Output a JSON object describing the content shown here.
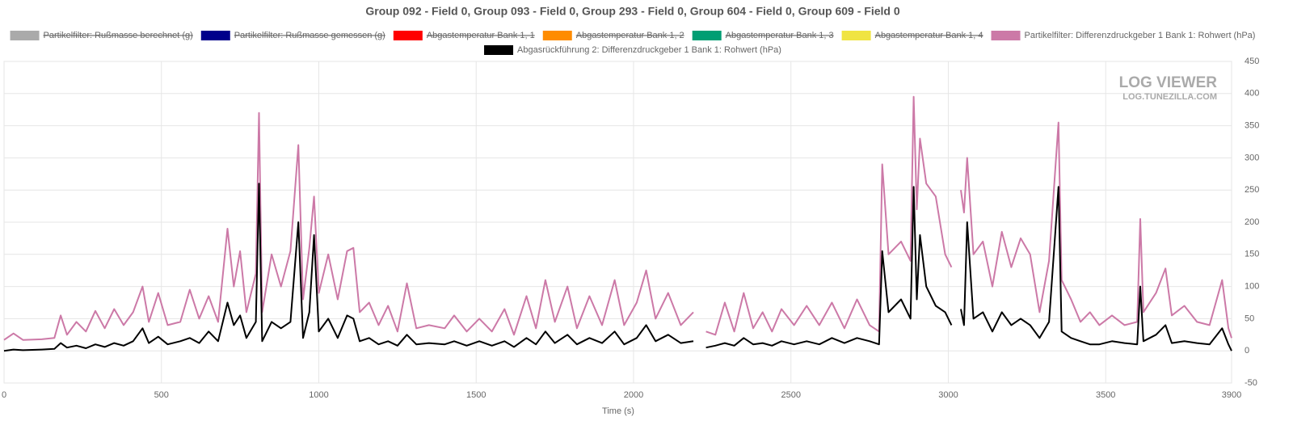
{
  "chart_data": {
    "type": "line",
    "title": "Group 092 - Field 0, Group 093 - Field 0, Group 293 - Field 0, Group 604 - Field 0, Group 609 - Field 0",
    "x_label": "Time (s)",
    "watermark": [
      "LOG VIEWER",
      "LOG.TUNEZILLA.COM"
    ],
    "xlim": [
      0,
      3900
    ],
    "xticks": [
      0,
      500,
      1000,
      1500,
      2000,
      2500,
      3000,
      3500,
      3900
    ],
    "ylim": [
      -50,
      450
    ],
    "yticks": [
      -50,
      0,
      50,
      100,
      150,
      200,
      250,
      300,
      350,
      400,
      450
    ],
    "y_axis_side": "right",
    "grid": true,
    "x": [
      0,
      30,
      60,
      120,
      160,
      180,
      200,
      230,
      260,
      290,
      320,
      350,
      380,
      410,
      440,
      460,
      490,
      520,
      560,
      590,
      620,
      650,
      680,
      710,
      730,
      750,
      770,
      800,
      810,
      820,
      850,
      880,
      910,
      935,
      950,
      970,
      985,
      1000,
      1030,
      1060,
      1090,
      1110,
      1130,
      1160,
      1190,
      1220,
      1250,
      1280,
      1310,
      1350,
      1400,
      1430,
      1470,
      1510,
      1550,
      1590,
      1620,
      1660,
      1690,
      1720,
      1750,
      1790,
      1820,
      1860,
      1900,
      1940,
      1970,
      2010,
      2040,
      2070,
      2110,
      2150,
      2190,
      2210,
      2230,
      2260,
      2290,
      2320,
      2350,
      2380,
      2410,
      2440,
      2470,
      2510,
      2550,
      2590,
      2630,
      2670,
      2710,
      2750,
      2780,
      2790,
      2810,
      2850,
      2880,
      2890,
      2900,
      2910,
      2930,
      2960,
      2990,
      3010,
      3025,
      3040,
      3050,
      3060,
      3080,
      3110,
      3140,
      3170,
      3200,
      3230,
      3260,
      3290,
      3320,
      3350,
      3360,
      3390,
      3420,
      3450,
      3480,
      3520,
      3560,
      3600,
      3610,
      3620,
      3660,
      3690,
      3710,
      3750,
      3790,
      3830,
      3870,
      3890,
      3900
    ],
    "series": [
      {
        "name": "Partikelfilter: Rußmasse berechnet (g)",
        "color": "#aaaaaa",
        "hidden": true
      },
      {
        "name": "Partikelfilter: Rußmasse gemessen (g)",
        "color": "#00008b",
        "hidden": true
      },
      {
        "name": "Abgastemperatur Bank 1, 1",
        "color": "#ff0000",
        "hidden": true
      },
      {
        "name": "Abgastemperatur Bank 1, 2",
        "color": "#ff8c00",
        "hidden": true
      },
      {
        "name": "Abgastemperatur Bank 1, 3",
        "color": "#009e73",
        "hidden": true
      },
      {
        "name": "Abgastemperatur Bank 1, 4",
        "color": "#f0e442",
        "hidden": true
      },
      {
        "name": "Partikelfilter: Differenzdruckgeber 1 Bank 1: Rohwert (hPa)",
        "color": "#cc79a7",
        "hidden": false,
        "values": [
          17,
          27,
          17,
          18,
          20,
          55,
          25,
          45,
          30,
          62,
          35,
          65,
          40,
          60,
          100,
          45,
          90,
          40,
          45,
          95,
          50,
          85,
          45,
          190,
          100,
          155,
          60,
          120,
          370,
          60,
          150,
          100,
          155,
          320,
          80,
          160,
          240,
          90,
          150,
          80,
          155,
          160,
          60,
          75,
          40,
          70,
          30,
          105,
          35,
          40,
          35,
          55,
          30,
          50,
          30,
          65,
          25,
          85,
          35,
          110,
          45,
          100,
          35,
          85,
          40,
          110,
          40,
          75,
          125,
          50,
          90,
          40,
          60,
          null,
          30,
          25,
          75,
          30,
          90,
          35,
          60,
          30,
          65,
          40,
          70,
          40,
          75,
          35,
          80,
          40,
          30,
          290,
          150,
          170,
          140,
          395,
          220,
          330,
          260,
          240,
          150,
          130,
          null,
          250,
          215,
          300,
          150,
          170,
          100,
          185,
          130,
          175,
          150,
          60,
          140,
          355,
          110,
          80,
          45,
          60,
          40,
          55,
          40,
          45,
          205,
          60,
          90,
          128,
          55,
          70,
          45,
          40,
          110,
          35,
          20
        ]
      },
      {
        "name": "Abgasrückführung 2: Differenzdruckgeber 1 Bank 1: Rohwert (hPa)",
        "color": "#000000",
        "hidden": false,
        "values": [
          0,
          2,
          1,
          2,
          3,
          12,
          5,
          8,
          4,
          10,
          6,
          12,
          8,
          15,
          35,
          12,
          22,
          10,
          15,
          20,
          12,
          30,
          15,
          75,
          40,
          55,
          20,
          45,
          260,
          15,
          45,
          35,
          45,
          200,
          20,
          60,
          180,
          30,
          50,
          20,
          55,
          50,
          15,
          20,
          10,
          15,
          8,
          25,
          10,
          12,
          10,
          15,
          8,
          15,
          8,
          15,
          6,
          20,
          10,
          30,
          12,
          25,
          10,
          20,
          12,
          30,
          10,
          20,
          40,
          15,
          25,
          12,
          15,
          null,
          5,
          8,
          12,
          8,
          20,
          10,
          12,
          8,
          15,
          10,
          15,
          10,
          20,
          12,
          20,
          15,
          10,
          155,
          60,
          80,
          50,
          255,
          80,
          180,
          100,
          70,
          60,
          40,
          null,
          65,
          40,
          200,
          50,
          60,
          30,
          60,
          40,
          50,
          40,
          20,
          45,
          255,
          30,
          20,
          15,
          10,
          10,
          15,
          12,
          10,
          100,
          15,
          25,
          40,
          12,
          15,
          12,
          10,
          35,
          10,
          0
        ]
      }
    ]
  }
}
